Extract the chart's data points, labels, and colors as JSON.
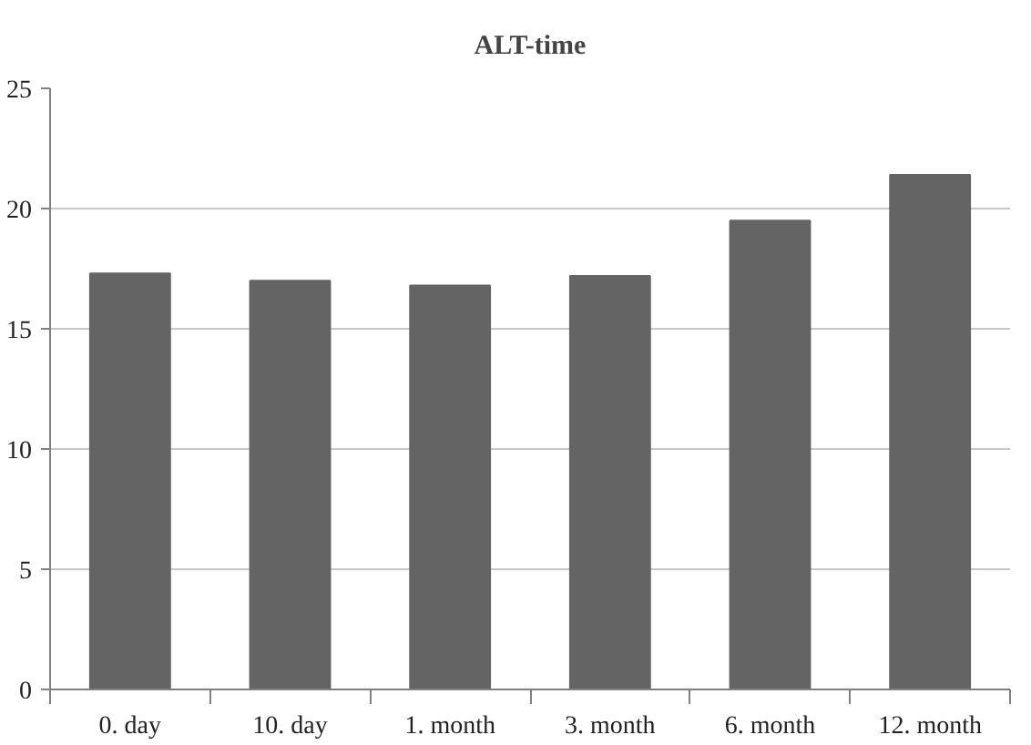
{
  "chart_data": {
    "type": "bar",
    "title": "ALT-time",
    "categories": [
      "0. day",
      "10. day",
      "1. month",
      "3. month",
      "6. month",
      "12. month"
    ],
    "values": [
      17.3,
      17.0,
      16.8,
      17.2,
      19.5,
      21.4
    ],
    "color": "#646464",
    "ylim": [
      0,
      25
    ],
    "yticks": [
      0,
      5,
      10,
      15,
      20,
      25
    ],
    "grid": "y"
  }
}
